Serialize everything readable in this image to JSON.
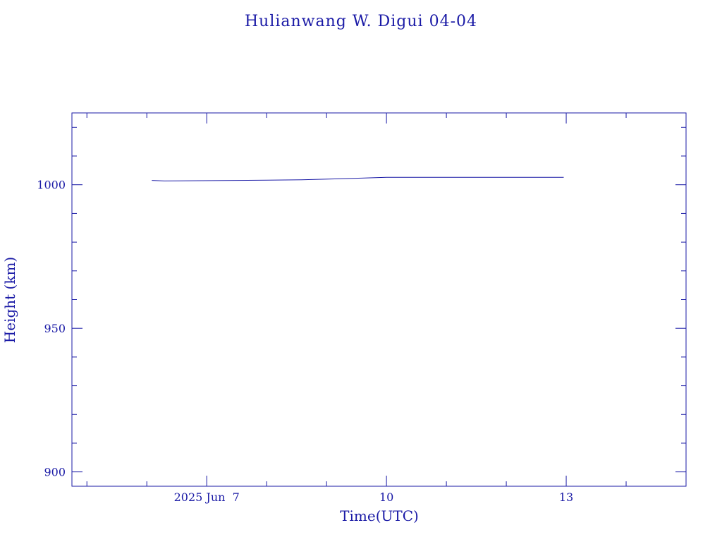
{
  "chart_data": {
    "type": "line",
    "title": "Hulianwang W. Digui 04-04",
    "xlabel": "Time(UTC)",
    "ylabel": "Height (km)",
    "xlim": [
      "2025-06-04T18:00",
      "2025-06-15T00:00"
    ],
    "ylim": [
      895,
      1025
    ],
    "x_tick_labels": [
      {
        "date": "2025-06-07T00:00",
        "label": "2025 Jun  7"
      },
      {
        "date": "2025-06-10T00:00",
        "label": "10"
      },
      {
        "date": "2025-06-13T00:00",
        "label": "13"
      }
    ],
    "x_minor_tick_dates": [
      "2025-06-05T00:00",
      "2025-06-06T00:00",
      "2025-06-08T00:00",
      "2025-06-09T00:00",
      "2025-06-11T00:00",
      "2025-06-12T00:00",
      "2025-06-14T00:00"
    ],
    "y_ticks": [
      900,
      950,
      1000
    ],
    "y_minor_ticks": [
      910,
      920,
      930,
      940,
      960,
      970,
      980,
      990,
      1010,
      1020
    ],
    "grid": false,
    "color": "#1a1aa6",
    "series": [
      {
        "x": [
          "2025-06-06T02:00",
          "2025-06-06T07:00",
          "2025-06-07T12:00",
          "2025-06-08T14:00",
          "2025-06-09T02:00",
          "2025-06-09T14:00",
          "2025-06-10T00:00",
          "2025-06-11T12:00",
          "2025-06-12T23:00"
        ],
        "y": [
          1001.5,
          1001.3,
          1001.5,
          1001.7,
          1002.0,
          1002.3,
          1002.6,
          1002.6,
          1002.6
        ]
      }
    ]
  }
}
